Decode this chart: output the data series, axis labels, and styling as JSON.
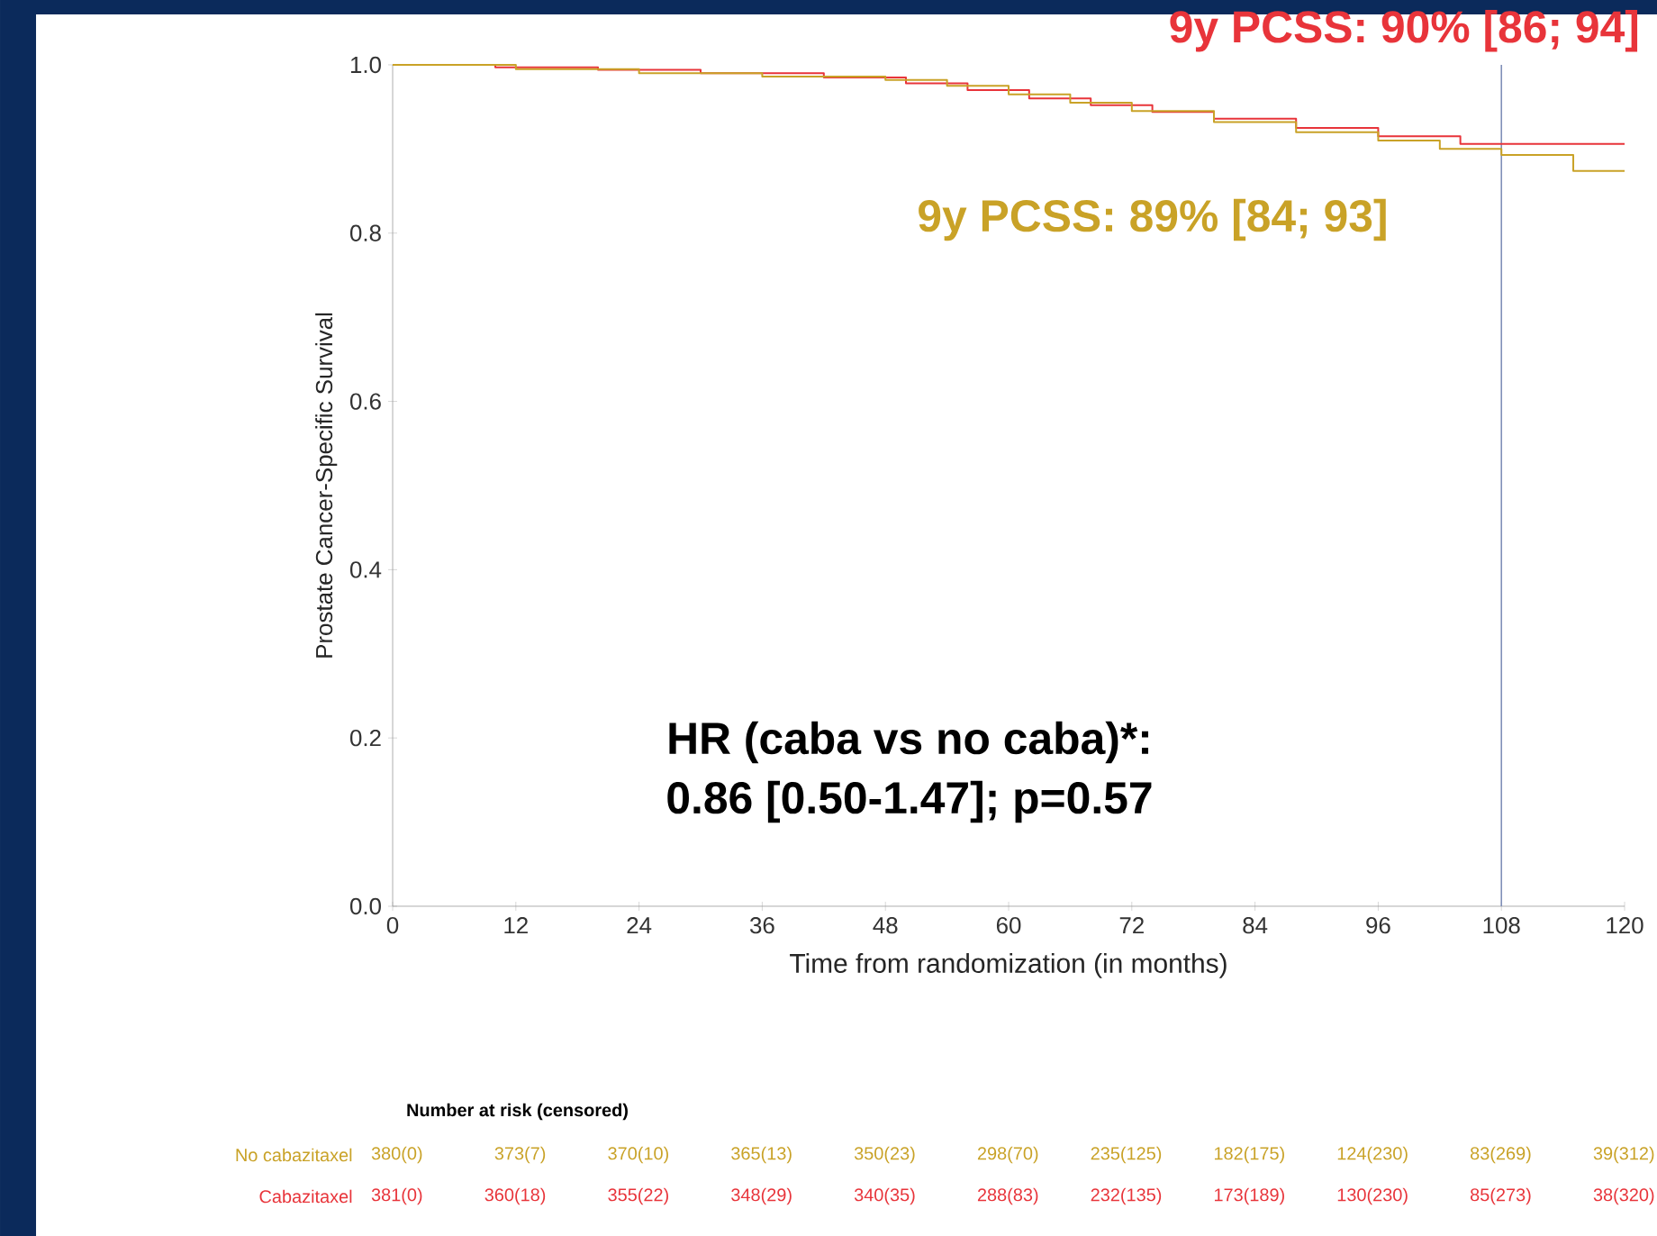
{
  "chart_data": {
    "type": "step",
    "xlabel": "Time from randomization (in months)",
    "ylabel": "Prostate Cancer-Specific Survival",
    "xlim": [
      0,
      120
    ],
    "xticks": [
      0,
      12,
      24,
      36,
      48,
      60,
      72,
      84,
      96,
      108,
      120
    ],
    "ylim": [
      0,
      1.0
    ],
    "yticks": [
      {
        "value": 0,
        "label": "0.0"
      },
      {
        "value": 0.2,
        "label": "0.2"
      },
      {
        "value": 0.4,
        "label": "0.4"
      },
      {
        "value": 0.6,
        "label": "0.6"
      },
      {
        "value": 0.8,
        "label": "0.8"
      },
      {
        "value": 1.0,
        "label": "1.0"
      }
    ],
    "grid": false,
    "series": [
      {
        "color": "#e8343a",
        "x": [
          0,
          10,
          20,
          30,
          42,
          50,
          56,
          62,
          68,
          74,
          80,
          88,
          96,
          104,
          120
        ],
        "values": [
          1.0,
          0.997,
          0.994,
          0.99,
          0.985,
          0.978,
          0.97,
          0.96,
          0.952,
          0.944,
          0.936,
          0.925,
          0.915,
          0.906,
          0.906
        ]
      },
      {
        "color": "#c9a227",
        "x": [
          0,
          12,
          24,
          36,
          48,
          54,
          60,
          66,
          72,
          80,
          88,
          96,
          102,
          108,
          115,
          120
        ],
        "values": [
          1.0,
          0.995,
          0.99,
          0.986,
          0.982,
          0.975,
          0.965,
          0.955,
          0.945,
          0.932,
          0.92,
          0.91,
          0.9,
          0.893,
          0.874,
          0.874
        ]
      }
    ],
    "ref_lines": [
      {
        "axis": "x",
        "value": 108,
        "color": "#8090b8"
      }
    ],
    "annotations": [
      "9y PCSS: 90% [86; 94]",
      "9y PCSS: 89% [84; 93]",
      "HR (caba vs no caba)*:",
      "0.86 [0.50-1.47]; p=0.57",
      "Number at risk (censored)",
      "No cabazitaxel",
      "380(0)",
      "373(7)",
      "370(10)",
      "365(13)",
      "350(23)",
      "298(70)",
      "235(125)",
      "182(175)",
      "124(230)",
      "83(269)",
      "39(312)",
      "Cabazitaxel",
      "381(0)",
      "360(18)",
      "355(22)",
      "348(29)",
      "340(35)",
      "288(83)",
      "232(135)",
      "173(189)",
      "130(230)",
      "85(273)",
      "38(320)"
    ]
  }
}
